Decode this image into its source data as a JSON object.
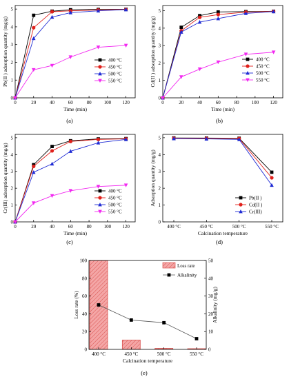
{
  "colors": {
    "s400": "#000000",
    "s450": "#e0201b",
    "s500": "#1f2bd4",
    "s550": "#f228f0",
    "loss_fill": "#f4a6a6",
    "loss_stroke": "#d9534f"
  },
  "chart_data": [
    {
      "panel": "(a)",
      "type": "line",
      "xlabel": "Time (min)",
      "ylabel": "Pb(II ) adsorption quantity (mg/g)",
      "xlim": [
        0,
        130
      ],
      "ylim": [
        0,
        5.2
      ],
      "xticks": [
        0,
        20,
        40,
        60,
        80,
        100,
        120
      ],
      "yticks": [
        0,
        1,
        2,
        3,
        4,
        5
      ],
      "x": [
        0,
        20,
        40,
        60,
        90,
        120
      ],
      "legend_position": "right-middle",
      "series": [
        {
          "name": "400 °C",
          "marker": "square",
          "color": "#000000",
          "values": [
            0,
            4.65,
            4.88,
            4.96,
            4.98,
            4.99
          ]
        },
        {
          "name": "450 °C",
          "marker": "circle",
          "color": "#e0201b",
          "values": [
            0,
            3.95,
            4.85,
            4.9,
            4.95,
            4.98
          ]
        },
        {
          "name": "500 °C",
          "marker": "triangle-up",
          "color": "#1f2bd4",
          "values": [
            0,
            3.35,
            4.55,
            4.8,
            4.9,
            4.97
          ]
        },
        {
          "name": "550 °C",
          "marker": "triangle-down",
          "color": "#f228f0",
          "values": [
            0,
            1.58,
            1.82,
            2.3,
            2.85,
            2.95
          ]
        }
      ]
    },
    {
      "panel": "(b)",
      "type": "line",
      "xlabel": "Time (min)",
      "ylabel": "Cd(II ) adsorption quantity (mg/g)",
      "xlim": [
        0,
        130
      ],
      "ylim": [
        0,
        5.3
      ],
      "xticks": [
        0,
        20,
        40,
        60,
        80,
        100,
        120
      ],
      "yticks": [
        0,
        1,
        2,
        3,
        4,
        5
      ],
      "x": [
        0,
        20,
        40,
        60,
        90,
        120
      ],
      "legend_position": "right-middle",
      "series": [
        {
          "name": "400 °C",
          "marker": "square",
          "color": "#000000",
          "values": [
            0,
            4.05,
            4.72,
            4.93,
            4.95,
            4.97
          ]
        },
        {
          "name": "450 °C",
          "marker": "circle",
          "color": "#e0201b",
          "values": [
            0,
            3.85,
            4.62,
            4.78,
            4.92,
            4.96
          ]
        },
        {
          "name": "500 °C",
          "marker": "triangle-up",
          "color": "#1f2bd4",
          "values": [
            0,
            3.78,
            4.35,
            4.55,
            4.85,
            4.95
          ]
        },
        {
          "name": "550 °C",
          "marker": "triangle-down",
          "color": "#f228f0",
          "values": [
            0,
            1.2,
            1.65,
            2.05,
            2.5,
            2.62
          ]
        }
      ]
    },
    {
      "panel": "(c)",
      "type": "line",
      "xlabel": "Time (min)",
      "ylabel": "Cr(III) adsorption quantity (mg/g)",
      "xlim": [
        0,
        130
      ],
      "ylim": [
        0,
        5.2
      ],
      "xticks": [
        0,
        20,
        40,
        60,
        80,
        100,
        120
      ],
      "yticks": [
        0,
        1,
        2,
        3,
        4,
        5
      ],
      "x": [
        0,
        20,
        40,
        60,
        90,
        120
      ],
      "legend_position": "right-middle",
      "series": [
        {
          "name": "400 °C",
          "marker": "square",
          "color": "#000000",
          "values": [
            0,
            3.4,
            4.48,
            4.82,
            4.93,
            4.95
          ]
        },
        {
          "name": "450 °C",
          "marker": "circle",
          "color": "#e0201b",
          "values": [
            0,
            3.3,
            4.22,
            4.78,
            4.9,
            4.93
          ]
        },
        {
          "name": "500 °C",
          "marker": "triangle-up",
          "color": "#1f2bd4",
          "values": [
            0,
            2.95,
            3.45,
            4.2,
            4.7,
            4.9
          ]
        },
        {
          "name": "550 °C",
          "marker": "triangle-down",
          "color": "#f228f0",
          "values": [
            0,
            1.12,
            1.55,
            1.85,
            2.1,
            2.18
          ]
        }
      ]
    },
    {
      "panel": "(d)",
      "type": "line",
      "xlabel": "Calcination temperature",
      "ylabel": "Adsorption quantity (mg/g)",
      "categories": [
        "400 °C",
        "450 °C",
        "500 °C",
        "550 °C"
      ],
      "ylim": [
        0,
        5.2
      ],
      "yticks": [
        0,
        1,
        2,
        3,
        4,
        5
      ],
      "legend_position": "bottom-right",
      "series": [
        {
          "name": "Pb(II )",
          "marker": "square",
          "color": "#000000",
          "values": [
            4.99,
            4.98,
            4.97,
            2.95
          ]
        },
        {
          "name": "Cd(II )",
          "marker": "circle",
          "color": "#e0201b",
          "values": [
            4.97,
            4.96,
            4.95,
            2.62
          ]
        },
        {
          "name": "Cr(III)",
          "marker": "triangle-up",
          "color": "#1f2bd4",
          "values": [
            4.95,
            4.93,
            4.9,
            2.18
          ]
        }
      ]
    },
    {
      "panel": "(e)",
      "type": "bar+line",
      "xlabel": "Calcination temperature",
      "ylabel_left": "Loss rate (%)",
      "ylabel_right": "Alkalinity (mg/g)",
      "categories": [
        "400 °C",
        "450 °C",
        "500 °C",
        "550 °C"
      ],
      "ylim_left": [
        0,
        100
      ],
      "yticks_left": [
        0,
        20,
        40,
        60,
        80,
        100
      ],
      "ylim_right": [
        0,
        50
      ],
      "yticks_right": [
        0,
        10,
        20,
        30,
        40,
        50
      ],
      "legend_position": "top-right",
      "series": [
        {
          "name": "Loss rate",
          "kind": "bar",
          "axis": "left",
          "values": [
            100,
            10.5,
            1.2,
            0.8
          ]
        },
        {
          "name": "Alkalinity",
          "kind": "line",
          "axis": "right",
          "marker": "square",
          "values": [
            25,
            16.5,
            15,
            6
          ]
        }
      ]
    }
  ]
}
